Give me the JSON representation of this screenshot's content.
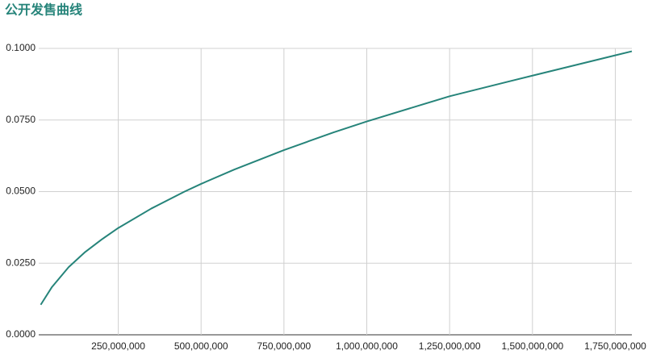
{
  "chart_data": {
    "type": "line",
    "title": "公开发售曲线",
    "x": [
      16000000,
      50000000,
      100000000,
      150000000,
      200000000,
      250000000,
      350000000,
      450000000,
      500000000,
      600000000,
      750000000,
      900000000,
      1000000000,
      1250000000,
      1500000000,
      1800000000
    ],
    "series": [
      {
        "color": "#26847a",
        "values": [
          0.0105,
          0.0167,
          0.0236,
          0.0289,
          0.0333,
          0.0373,
          0.0441,
          0.05,
          0.0527,
          0.0577,
          0.0645,
          0.0707,
          0.0745,
          0.0833,
          0.0905,
          0.099
        ]
      }
    ],
    "xlim": [
      10000000,
      1800000000
    ],
    "xticks": [
      {
        "value": 250000000,
        "label": "250,000,000"
      },
      {
        "value": 500000000,
        "label": "500,000,000"
      },
      {
        "value": 750000000,
        "label": "750,000,000"
      },
      {
        "value": 1000000000,
        "label": "1,000,000,000"
      },
      {
        "value": 1250000000,
        "label": "1,250,000,000"
      },
      {
        "value": 1500000000,
        "label": "1,500,000,000"
      },
      {
        "value": 1750000000,
        "label": "1,750,000,000"
      }
    ],
    "ylim": [
      0,
      0.1
    ],
    "yticks": [
      {
        "value": 0,
        "label": "0.0000"
      },
      {
        "value": 0.025,
        "label": "0.0250"
      },
      {
        "value": 0.05,
        "label": "0.0500"
      },
      {
        "value": 0.075,
        "label": "0.0750"
      },
      {
        "value": 0.1,
        "label": "0.1000"
      }
    ],
    "grid": true
  }
}
